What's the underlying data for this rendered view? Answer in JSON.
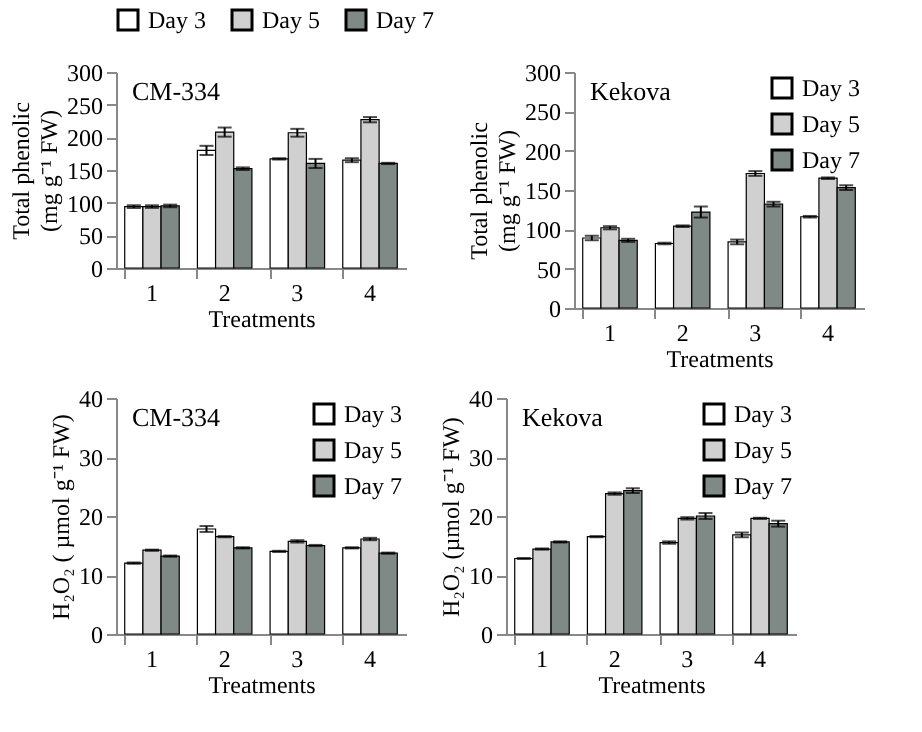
{
  "chart_data": [
    {
      "type": "bar",
      "title": "CM-334",
      "xlabel": "Treatments",
      "ylabel": "Total phenolic\n(mg g⁻¹ FW)",
      "categories": [
        "1",
        "2",
        "3",
        "4"
      ],
      "ylim": [
        0,
        300
      ],
      "yticks": [
        0,
        50,
        100,
        150,
        200,
        250,
        300
      ],
      "legend": "top",
      "grid": false,
      "series": [
        {
          "name": "Day 3",
          "color": "#ffffff",
          "values": [
            94,
            180,
            167,
            165
          ],
          "errors": [
            2,
            7,
            1,
            3
          ]
        },
        {
          "name": "Day 5",
          "color": "#d0d0d0",
          "values": [
            94,
            208,
            207,
            227
          ],
          "errors": [
            2,
            7,
            6,
            4
          ]
        },
        {
          "name": "Day 7",
          "color": "#7f8a86",
          "values": [
            95,
            152,
            160,
            160
          ],
          "errors": [
            2,
            2,
            7,
            1
          ]
        }
      ]
    },
    {
      "type": "bar",
      "title": "Kekova",
      "xlabel": "Treatments",
      "ylabel": "Total phenolic\n(mg g⁻¹ FW)",
      "categories": [
        "1",
        "2",
        "3",
        "4"
      ],
      "ylim": [
        0,
        300
      ],
      "yticks": [
        0,
        50,
        100,
        150,
        200,
        250,
        300
      ],
      "legend": "top right",
      "grid": false,
      "series": [
        {
          "name": "Day 3",
          "color": "#ffffff",
          "values": [
            89,
            82,
            84,
            116
          ],
          "errors": [
            3,
            1,
            3,
            1
          ]
        },
        {
          "name": "Day 5",
          "color": "#d0d0d0",
          "values": [
            102,
            104,
            171,
            165
          ],
          "errors": [
            2,
            1,
            3,
            1
          ]
        },
        {
          "name": "Day 7",
          "color": "#7f8a86",
          "values": [
            86,
            122,
            132,
            153
          ],
          "errors": [
            2,
            7,
            3,
            3
          ]
        }
      ]
    },
    {
      "type": "bar",
      "title": "CM-334",
      "xlabel": "Treatments",
      "ylabel": "H₂O₂ ( µmol g⁻¹ FW)",
      "categories": [
        "1",
        "2",
        "3",
        "4"
      ],
      "ylim": [
        0,
        40
      ],
      "yticks": [
        0,
        10,
        20,
        30,
        40
      ],
      "legend": "top right",
      "grid": false,
      "series": [
        {
          "name": "Day 3",
          "color": "#ffffff",
          "values": [
            12,
            17.8,
            14,
            14.6
          ],
          "errors": [
            0.1,
            0.5,
            0.1,
            0.1
          ]
        },
        {
          "name": "Day 5",
          "color": "#d0d0d0",
          "values": [
            14.2,
            16.5,
            15.7,
            16.1
          ],
          "errors": [
            0.1,
            0.1,
            0.2,
            0.2
          ]
        },
        {
          "name": "Day 7",
          "color": "#7f8a86",
          "values": [
            13.2,
            14.6,
            15,
            13.7
          ],
          "errors": [
            0.1,
            0.1,
            0.1,
            0.1
          ]
        }
      ]
    },
    {
      "type": "bar",
      "title": "Kekova",
      "xlabel": "Treatments",
      "ylabel": "H₂O₂ (µmol g⁻¹ FW)",
      "categories": [
        "1",
        "2",
        "3",
        "4"
      ],
      "ylim": [
        0,
        40
      ],
      "yticks": [
        0,
        10,
        20,
        30,
        40
      ],
      "legend": "top right",
      "grid": false,
      "series": [
        {
          "name": "Day 3",
          "color": "#ffffff",
          "values": [
            12.8,
            16.5,
            15.5,
            16.8
          ],
          "errors": [
            0.1,
            0.1,
            0.2,
            0.4
          ]
        },
        {
          "name": "Day 5",
          "color": "#d0d0d0",
          "values": [
            14.4,
            23.8,
            19.6,
            19.6
          ],
          "errors": [
            0.1,
            0.2,
            0.2,
            0.1
          ]
        },
        {
          "name": "Day 7",
          "color": "#7f8a86",
          "values": [
            15.6,
            24.3,
            20.0,
            18.7
          ],
          "errors": [
            0.1,
            0.4,
            0.5,
            0.5
          ]
        }
      ]
    }
  ]
}
